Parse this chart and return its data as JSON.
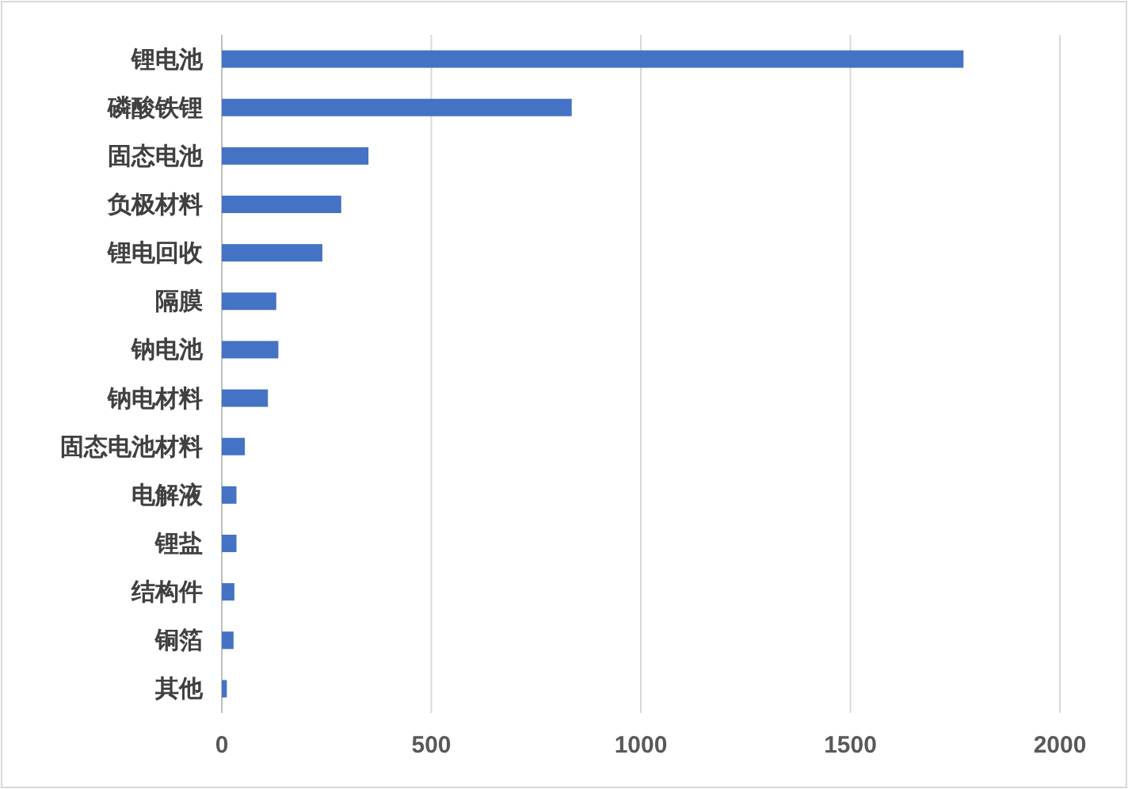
{
  "chart_data": {
    "type": "bar",
    "orientation": "horizontal",
    "categories": [
      "锂电池",
      "磷酸铁锂",
      "固态电池",
      "负极材料",
      "锂电回收",
      "隔膜",
      "钠电池",
      "钠电材料",
      "固态电池材料",
      "电解液",
      "锂盐",
      "结构件",
      "铜箔",
      "其他"
    ],
    "values": [
      1770,
      835,
      350,
      285,
      240,
      130,
      135,
      110,
      55,
      35,
      35,
      30,
      28,
      12
    ],
    "color": "#4472c4",
    "xlim": [
      0,
      2000
    ],
    "xticks": [
      0,
      500,
      1000,
      1500,
      2000
    ],
    "grid": "x"
  }
}
